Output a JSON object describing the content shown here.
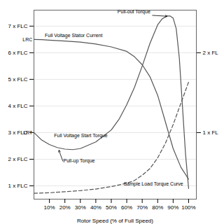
{
  "chart_data": {
    "type": "line",
    "xlabel": "Rotor Speed (% of Full Speed)",
    "xlim": [
      0.0,
      1.05
    ],
    "xticks": [
      {
        "value": 0.1,
        "label": "10%"
      },
      {
        "value": 0.2,
        "label": "20%"
      },
      {
        "value": 0.3,
        "label": "30%"
      },
      {
        "value": 0.4,
        "label": "40%"
      },
      {
        "value": 0.5,
        "label": "50%"
      },
      {
        "value": 0.6,
        "label": "60%"
      },
      {
        "value": 0.7,
        "label": "70%"
      },
      {
        "value": 0.8,
        "label": "80%"
      },
      {
        "value": 0.9,
        "label": "90%"
      },
      {
        "value": 1.0,
        "label": "100%"
      }
    ],
    "ylim": [
      0.5,
      7.6
    ],
    "yticks": [
      {
        "value": 1,
        "label": "1 x FLC"
      },
      {
        "value": 2,
        "label": "2 x FLC"
      },
      {
        "value": 3,
        "label": "3 x FLC"
      },
      {
        "value": 4,
        "label": "4 x FLC"
      },
      {
        "value": 5,
        "label": "5 x FLC"
      },
      {
        "value": 6,
        "label": "6 x FLC"
      },
      {
        "value": 7,
        "label": "7 x FLC"
      }
    ],
    "y2lim": [
      0.5,
      7.6
    ],
    "y2ticks": [
      {
        "value": 3,
        "label": "1 x FL"
      },
      {
        "value": 6,
        "label": "2 x FL"
      }
    ],
    "grid": "y",
    "series": [
      {
        "x": [
          0.0,
          0.05,
          0.1,
          0.2,
          0.3,
          0.4,
          0.5,
          0.6,
          0.65,
          0.7,
          0.75,
          0.8,
          0.85,
          0.9,
          0.95,
          1.0
        ],
        "values": [
          6.5,
          6.49,
          6.47,
          6.44,
          6.4,
          6.33,
          6.22,
          6.05,
          5.85,
          5.55,
          5.1,
          4.4,
          3.4,
          2.4,
          1.7,
          1.25
        ],
        "color": "#555555",
        "line_style": "solid"
      },
      {
        "x": [
          0.0,
          0.05,
          0.1,
          0.15,
          0.2,
          0.25,
          0.3,
          0.4,
          0.5,
          0.55,
          0.6,
          0.65,
          0.7,
          0.75,
          0.8,
          0.83,
          0.86,
          0.88,
          0.9,
          0.92,
          0.94,
          0.96,
          0.98,
          1.0
        ],
        "values": [
          3.0,
          2.72,
          2.55,
          2.44,
          2.38,
          2.36,
          2.4,
          2.65,
          3.1,
          3.5,
          4.05,
          4.7,
          5.5,
          6.35,
          7.05,
          7.28,
          7.38,
          7.38,
          7.3,
          6.9,
          5.8,
          4.0,
          2.2,
          0.9
        ],
        "color": "#555555",
        "line_style": "solid"
      },
      {
        "x": [
          0.0,
          0.1,
          0.2,
          0.3,
          0.4,
          0.5,
          0.6,
          0.65,
          0.7,
          0.75,
          0.8,
          0.85,
          0.9,
          0.95,
          1.0
        ],
        "values": [
          0.72,
          0.74,
          0.78,
          0.82,
          0.88,
          0.97,
          1.1,
          1.2,
          1.4,
          1.65,
          2.05,
          2.6,
          3.3,
          4.1,
          4.9
        ],
        "color": "#555555",
        "line_style": "dashed"
      }
    ],
    "annotations": [
      {
        "text": "Full Voltage Stator Current",
        "x": 0.07,
        "y": 6.6
      },
      {
        "text": "Full Voltage Start Torque",
        "x": 0.13,
        "y": 2.82
      },
      {
        "text": "Pull-out Torque",
        "x": 0.54,
        "y": 7.48,
        "arrow_x": 0.865,
        "arrow_y": 7.37
      },
      {
        "text": "Pull-up Torque",
        "x": 0.19,
        "y": 1.88,
        "arrow_x": 0.16,
        "arrow_y": 2.36
      },
      {
        "text": "Sample Load Torque Curve",
        "x": 0.58,
        "y": 1.0
      },
      {
        "text": "LRC",
        "x": -0.01,
        "y": 6.5
      },
      {
        "text": "LRT",
        "x": -0.01,
        "y": 3.0
      }
    ]
  }
}
